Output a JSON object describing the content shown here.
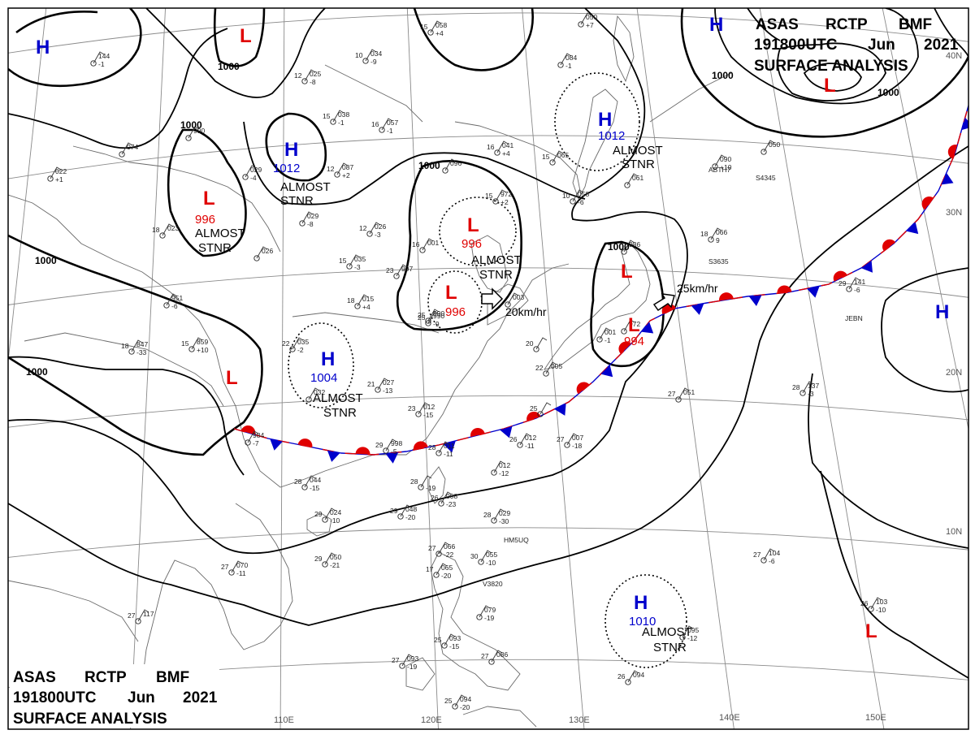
{
  "header": {
    "line1": [
      "ASAS",
      "RCTP",
      "BMF"
    ],
    "line2": [
      "191800UTC",
      "Jun",
      "2021"
    ],
    "line3": "SURFACE ANALYSIS"
  },
  "colors": {
    "high": "#0000cc",
    "low": "#e00000",
    "warm_front": "#e00000",
    "cold_front": "#0000cc",
    "isobar": "#000000",
    "grid": "#8a8a8a"
  },
  "grid_labels": {
    "longitudes": [
      "110E",
      "120E",
      "130E",
      "140E",
      "150E"
    ],
    "latitudes": [
      "40N",
      "30N",
      "20N",
      "10N"
    ]
  },
  "isobar_labels": [
    "1000",
    "1000",
    "1000",
    "1000",
    "1000",
    "1000",
    "1000"
  ],
  "systems": [
    {
      "id": "H1",
      "letter": "H",
      "value": "",
      "color": "high"
    },
    {
      "id": "L1",
      "letter": "L",
      "value": "",
      "color": "low"
    },
    {
      "id": "H2",
      "letter": "H",
      "value": "1012",
      "color": "high"
    },
    {
      "id": "L2",
      "letter": "L",
      "value": "996",
      "color": "low"
    },
    {
      "id": "L3",
      "letter": "L",
      "value": "996",
      "color": "low"
    },
    {
      "id": "L4",
      "letter": "L",
      "value": "996",
      "color": "low"
    },
    {
      "id": "H3",
      "letter": "H",
      "value": "1004",
      "color": "high"
    },
    {
      "id": "L5",
      "letter": "L",
      "value": "",
      "color": "low"
    },
    {
      "id": "H4",
      "letter": "H",
      "value": "1012",
      "color": "high"
    },
    {
      "id": "L6",
      "letter": "L",
      "value": "",
      "color": "low"
    },
    {
      "id": "L7",
      "letter": "L",
      "value": "994",
      "color": "low"
    },
    {
      "id": "H5",
      "letter": "H",
      "value": "",
      "color": "high"
    },
    {
      "id": "H6",
      "letter": "H",
      "value": "",
      "color": "high"
    },
    {
      "id": "H7",
      "letter": "H",
      "value": "1010",
      "color": "high"
    },
    {
      "id": "L8",
      "letter": "L",
      "value": "",
      "color": "low"
    }
  ],
  "notes": [
    {
      "id": "n1",
      "lines": [
        "ALMOST",
        "STNR"
      ]
    },
    {
      "id": "n2",
      "lines": [
        "ALMOST",
        "STNR"
      ]
    },
    {
      "id": "n3",
      "lines": [
        "ALMOST",
        "STNR"
      ]
    },
    {
      "id": "n4",
      "lines": [
        "ALMOST",
        "STNR"
      ]
    },
    {
      "id": "n5",
      "lines": [
        "ALMOST",
        "STNR"
      ]
    },
    {
      "id": "n6",
      "lines": [
        "ALMOST",
        "STNR"
      ]
    }
  ],
  "motion_labels": [
    "20km/hr",
    "25km/hr"
  ],
  "stations": [
    {
      "t": "",
      "p": "144",
      "d": "-1"
    },
    {
      "t": "",
      "p": "074",
      "d": ""
    },
    {
      "t": "",
      "p": "022",
      "d": "+1"
    },
    {
      "t": "15",
      "p": "058",
      "d": "+4"
    },
    {
      "t": "10",
      "p": "034",
      "d": "-9"
    },
    {
      "t": "12",
      "p": "025",
      "d": "-8"
    },
    {
      "t": "15",
      "p": "038",
      "d": "-1"
    },
    {
      "t": "16",
      "p": "057",
      "d": "-1"
    },
    {
      "t": "",
      "p": "050",
      "d": "+7"
    },
    {
      "t": "",
      "p": "084",
      "d": "-1"
    },
    {
      "t": "",
      "p": "990",
      "d": ""
    },
    {
      "t": "",
      "p": "029",
      "d": "-4"
    },
    {
      "t": "12",
      "p": "087",
      "d": "+2"
    },
    {
      "t": "16",
      "p": "041",
      "d": "+4"
    },
    {
      "t": "15",
      "p": "065",
      "d": ""
    },
    {
      "t": "",
      "p": "096",
      "d": ""
    },
    {
      "t": "15",
      "p": "972",
      "d": "+2"
    },
    {
      "t": "10",
      "p": "058",
      "d": "-6"
    },
    {
      "t": "",
      "p": "061",
      "d": ""
    },
    {
      "t": "",
      "p": "090",
      "d": "+10"
    },
    {
      "t": "",
      "p": "050",
      "d": ""
    },
    {
      "t": "",
      "p": "029",
      "d": "-8"
    },
    {
      "t": "12",
      "p": "026",
      "d": "-3"
    },
    {
      "t": "18",
      "p": "023",
      "d": ""
    },
    {
      "t": "",
      "p": "026",
      "d": ""
    },
    {
      "t": "15",
      "p": "035",
      "d": "-3"
    },
    {
      "t": "16",
      "p": "001",
      "d": ""
    },
    {
      "t": "23",
      "p": "997",
      "d": ""
    },
    {
      "t": "",
      "p": "003",
      "d": ""
    },
    {
      "t": "18",
      "p": "066",
      "d": "9"
    },
    {
      "t": "",
      "p": "986",
      "d": ""
    },
    {
      "t": "",
      "p": "951",
      "d": "-6"
    },
    {
      "t": "18",
      "p": "015",
      "d": "+4"
    },
    {
      "t": "25",
      "p": "990",
      "d": "-9"
    },
    {
      "t": "29",
      "p": "141",
      "d": "-6"
    },
    {
      "t": "18",
      "p": "847",
      "d": "-33"
    },
    {
      "t": "15",
      "p": "859",
      "d": "+10"
    },
    {
      "t": "22",
      "p": "035",
      "d": "-2"
    },
    {
      "t": "20",
      "p": "",
      "d": ""
    },
    {
      "t": "22",
      "p": "005",
      "d": ""
    },
    {
      "t": "",
      "p": "001",
      "d": "-1"
    },
    {
      "t": "",
      "p": "972",
      "d": ""
    },
    {
      "t": "25",
      "p": "990",
      "d": ""
    },
    {
      "t": "21",
      "p": "027",
      "d": "-13"
    },
    {
      "t": "",
      "p": "032",
      "d": ""
    },
    {
      "t": "28",
      "p": "137",
      "d": "-3"
    },
    {
      "t": "27",
      "p": "051",
      "d": ""
    },
    {
      "t": "23",
      "p": "012",
      "d": "-15"
    },
    {
      "t": "25",
      "p": "",
      "d": ""
    },
    {
      "t": "",
      "p": "984",
      "d": "-7"
    },
    {
      "t": "29",
      "p": "998",
      "d": "-5"
    },
    {
      "t": "28",
      "p": "011",
      "d": "-11"
    },
    {
      "t": "26",
      "p": "012",
      "d": "-11"
    },
    {
      "t": "27",
      "p": "007",
      "d": "-18"
    },
    {
      "t": "",
      "p": "012",
      "d": "-12"
    },
    {
      "t": "28",
      "p": "",
      "d": "-19"
    },
    {
      "t": "26",
      "p": "008",
      "d": "-23"
    },
    {
      "t": "28",
      "p": "044",
      "d": "-15"
    },
    {
      "t": "29",
      "p": "024",
      "d": "-10"
    },
    {
      "t": "29",
      "p": "048",
      "d": "-20"
    },
    {
      "t": "28",
      "p": "029",
      "d": "-30"
    },
    {
      "t": "27",
      "p": "066",
      "d": "-22"
    },
    {
      "t": "30",
      "p": "055",
      "d": "-10"
    },
    {
      "t": "27",
      "p": "104",
      "d": "-6"
    },
    {
      "t": "27",
      "p": "070",
      "d": "-11"
    },
    {
      "t": "29",
      "p": "050",
      "d": "-21"
    },
    {
      "t": "17",
      "p": "065",
      "d": "-20"
    },
    {
      "t": "",
      "p": "079",
      "d": "-19"
    },
    {
      "t": "26",
      "p": "103",
      "d": "-10"
    },
    {
      "t": "25",
      "p": "093",
      "d": "-15"
    },
    {
      "t": "27",
      "p": "086",
      "d": ""
    },
    {
      "t": "27",
      "p": "093",
      "d": "-19"
    },
    {
      "t": "",
      "p": "095",
      "d": "-12"
    },
    {
      "t": "26",
      "p": "094",
      "d": ""
    },
    {
      "t": "27",
      "p": "117",
      "d": ""
    },
    {
      "t": "25",
      "p": "094",
      "d": "-20"
    }
  ],
  "ship_ids": [
    "ABTH7",
    "S4345",
    "S3635",
    "JEBN",
    "HM5UQ",
    "V3820"
  ]
}
